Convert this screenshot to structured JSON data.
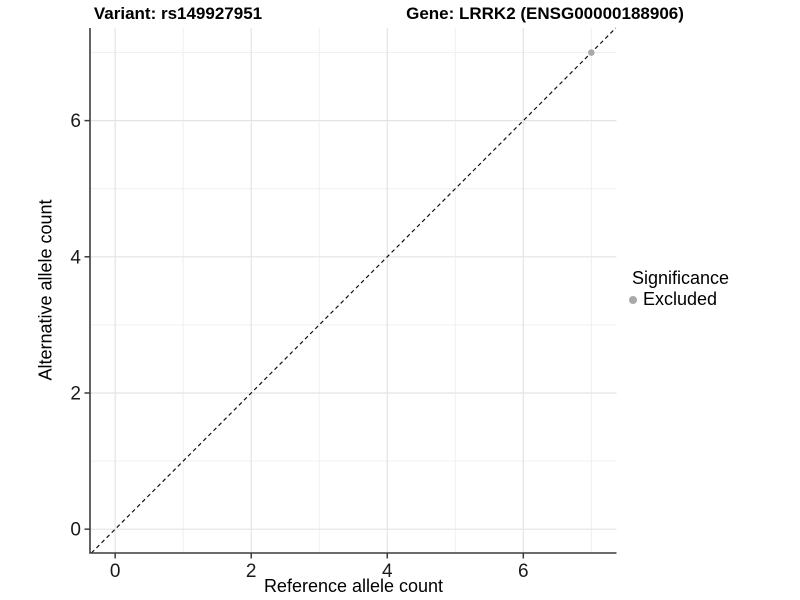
{
  "figure": {
    "title_left": "Variant: rs149927951",
    "title_right": "Gene: LRRK2 (ENSG00000188906)"
  },
  "chart_data": {
    "type": "scatter",
    "title": "Variant: rs149927951 — Gene: LRRK2 (ENSG00000188906)",
    "xlabel": "Reference allele count",
    "ylabel": "Alternative allele count",
    "xlim": [
      -0.37,
      7.37
    ],
    "ylim": [
      -0.35,
      7.36
    ],
    "x_ticks": [
      0,
      2,
      4,
      6
    ],
    "y_ticks": [
      0,
      2,
      4,
      6
    ],
    "x_minor_ticks": [
      1,
      3,
      5,
      7
    ],
    "y_minor_ticks": [
      1,
      3,
      5,
      7
    ],
    "grid": "major+minor",
    "series": [
      {
        "name": "Excluded",
        "color": "#a9a9a9",
        "points": [
          [
            7,
            7
          ]
        ]
      }
    ],
    "reference_line": {
      "slope": 1,
      "intercept": 0,
      "style": "dashed",
      "color": "#111111"
    },
    "legend": {
      "title": "Significance",
      "position": "right",
      "entries": [
        {
          "label": "Excluded",
          "color": "#a9a9a9",
          "marker": "circle"
        }
      ]
    },
    "colors": {
      "grid_major": "#e4e4e4",
      "grid_minor": "#f0f0f0",
      "axis_line": "#3c3c3c",
      "tick_text": "#1a1a1a"
    }
  }
}
